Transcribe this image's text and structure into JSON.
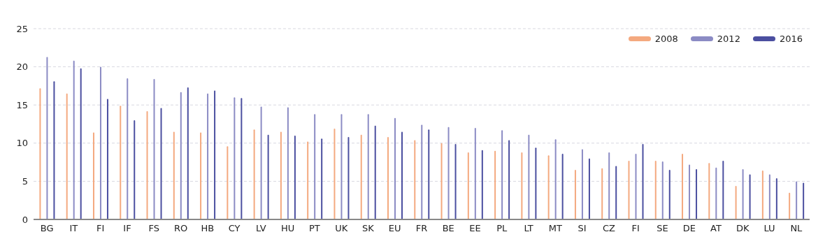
{
  "chart_data": {
    "type": "bar",
    "categories": [
      "BG",
      "IT",
      "FI",
      "IF",
      "FS",
      "RO",
      "HB",
      "CY",
      "LV",
      "HU",
      "PT",
      "UK",
      "SK",
      "EU",
      "FR",
      "BE",
      "EE",
      "PL",
      "LT",
      "MT",
      "SI",
      "CZ",
      "FI",
      "SE",
      "DE",
      "AT",
      "DK",
      "LU",
      "NL"
    ],
    "series": [
      {
        "name": "2008",
        "color": "#f4a97f",
        "values": [
          17.2,
          16.5,
          11.4,
          14.9,
          14.2,
          11.5,
          11.4,
          9.6,
          11.8,
          11.5,
          10.2,
          11.9,
          11.1,
          10.8,
          10.4,
          10.0,
          8.8,
          9.0,
          8.8,
          8.4,
          6.5,
          6.7,
          7.7,
          7.7,
          8.6,
          7.4,
          4.4,
          6.4,
          3.5
        ]
      },
      {
        "name": "2012",
        "color": "#8b8bc4",
        "values": [
          21.3,
          20.8,
          20.0,
          18.5,
          18.4,
          16.7,
          16.5,
          16.0,
          14.8,
          14.7,
          13.8,
          13.8,
          13.8,
          13.3,
          12.4,
          12.1,
          12.0,
          11.7,
          11.1,
          10.5,
          9.2,
          8.8,
          8.6,
          7.6,
          7.2,
          6.8,
          6.6,
          5.9,
          5.0
        ]
      },
      {
        "name": "2016",
        "color": "#4b4fa0",
        "values": [
          18.1,
          19.8,
          15.8,
          13.0,
          14.6,
          17.3,
          16.9,
          15.9,
          11.1,
          11.0,
          10.6,
          10.8,
          12.3,
          11.5,
          11.8,
          9.9,
          9.1,
          10.4,
          9.4,
          8.6,
          8.0,
          7.0,
          9.9,
          6.5,
          6.6,
          7.7,
          5.9,
          5.4,
          4.8
        ]
      }
    ],
    "ylim": [
      0,
      25
    ],
    "yticks": [
      0,
      5,
      10,
      15,
      20,
      25
    ],
    "grid": "y",
    "legend": "top right"
  }
}
